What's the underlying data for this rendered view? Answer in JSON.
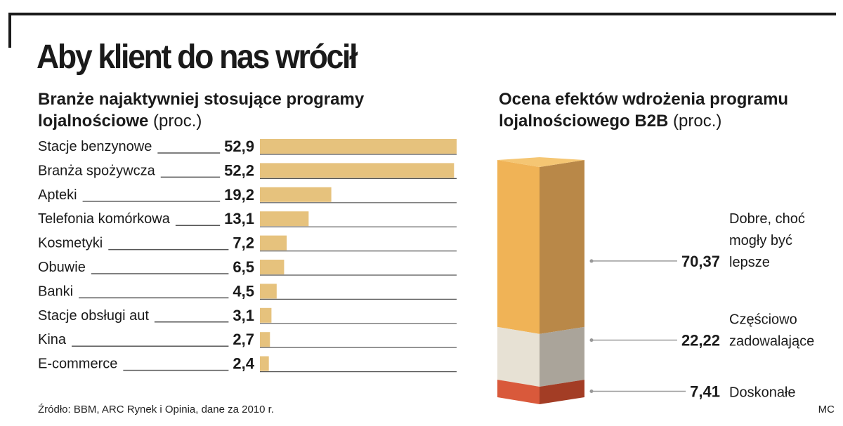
{
  "headline": "Aby klient do nas wrócił",
  "left_subtitle": {
    "line1": "Branże najaktywniej stosujące programy",
    "line2": "lojalnościowe",
    "unit": "(proc.)"
  },
  "right_subtitle": {
    "line1": "Ocena efektów wdrożenia programu",
    "line2": "lojalnościowego B2B",
    "unit": "(proc.)"
  },
  "source": "Źródło: BBM, ARC Rynek i Opinia, dane za 2010 r.",
  "credit": "MC",
  "colors": {
    "bar": "#e6c27d",
    "text": "#1a1a1a",
    "rule": "#555555",
    "stack_top_front": "#f0b356",
    "stack_top_side": "#b98848",
    "stack_mid_front": "#e7e1d4",
    "stack_mid_side": "#aaa49a",
    "stack_bottom_front": "#d9593b",
    "stack_bottom_side": "#a33d25"
  },
  "chart_data": [
    {
      "type": "bar",
      "orientation": "horizontal",
      "title": "Branże najaktywniej stosujące programy lojalnościowe (proc.)",
      "categories": [
        "Stacje benzynowe",
        "Branża spożywcza",
        "Apteki",
        "Telefonia komórkowa",
        "Kosmetyki",
        "Obuwie",
        "Banki",
        "Stacje obsługi aut",
        "Kina",
        "E-commerce"
      ],
      "values": [
        52.9,
        52.2,
        19.2,
        13.1,
        7.2,
        6.5,
        4.5,
        3.1,
        2.7,
        2.4
      ],
      "value_labels": [
        "52,9",
        "52,2",
        "19,2",
        "13,1",
        "7,2",
        "6,5",
        "4,5",
        "3,1",
        "2,7",
        "2,4"
      ],
      "xlim": [
        0,
        52.9
      ]
    },
    {
      "type": "bar",
      "stacked": true,
      "title": "Ocena efektów wdrożenia programu lojalnościowego B2B (proc.)",
      "segments": [
        {
          "name": "Dobre, choć mogły być lepsze",
          "label_lines": [
            "Dobre, choć",
            "mogły być",
            "lepsze"
          ],
          "value": 70.37,
          "value_label": "70,37"
        },
        {
          "name": "Częściowo zadowalające",
          "label_lines": [
            "Częściowo",
            "zadowalające"
          ],
          "value": 22.22,
          "value_label": "22,22"
        },
        {
          "name": "Doskonałe",
          "label_lines": [
            "Doskonałe"
          ],
          "value": 7.41,
          "value_label": "7,41"
        }
      ],
      "ylim": [
        0,
        100
      ]
    }
  ]
}
